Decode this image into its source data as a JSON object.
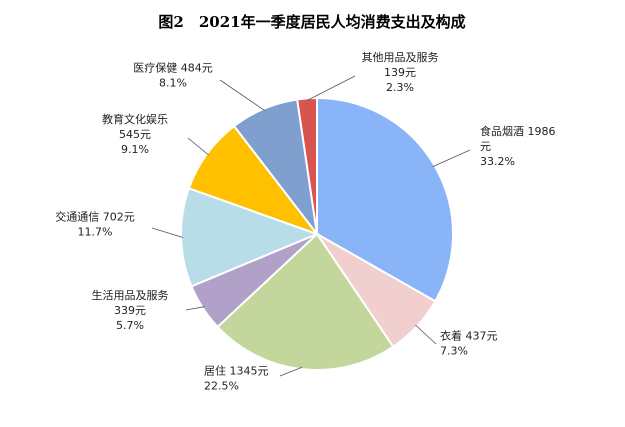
{
  "chart_data": {
    "type": "pie",
    "title": "图2　2021年一季度居民人均消费支出及构成",
    "slices": [
      {
        "name": "食品烟酒",
        "value": 1986,
        "value_text": "1986元",
        "percent": "33.2%",
        "color": "#8ab4f8"
      },
      {
        "name": "衣着",
        "value": 437,
        "value_text": "437元",
        "percent": "7.3%",
        "color": "#f2cfcf"
      },
      {
        "name": "居住",
        "value": 1345,
        "value_text": "1345元",
        "percent": "22.5%",
        "color": "#c3d69b"
      },
      {
        "name": "生活用品及服务",
        "value": 339,
        "value_text": "339元",
        "percent": "5.7%",
        "color": "#b1a0c7"
      },
      {
        "name": "交通通信",
        "value": 702,
        "value_text": "702元",
        "percent": "11.7%",
        "color": "#b7dee8"
      },
      {
        "name": "教育文化娱乐",
        "value": 545,
        "value_text": "545元",
        "percent": "9.1%",
        "color": "#ffc000"
      },
      {
        "name": "医疗保健",
        "value": 484,
        "value_text": "484元",
        "percent": "8.1%",
        "color": "#7f9fcf"
      },
      {
        "name": "其他用品及服务",
        "value": 139,
        "value_text": "139元",
        "percent": "2.3%",
        "color": "#d9534f"
      }
    ]
  }
}
